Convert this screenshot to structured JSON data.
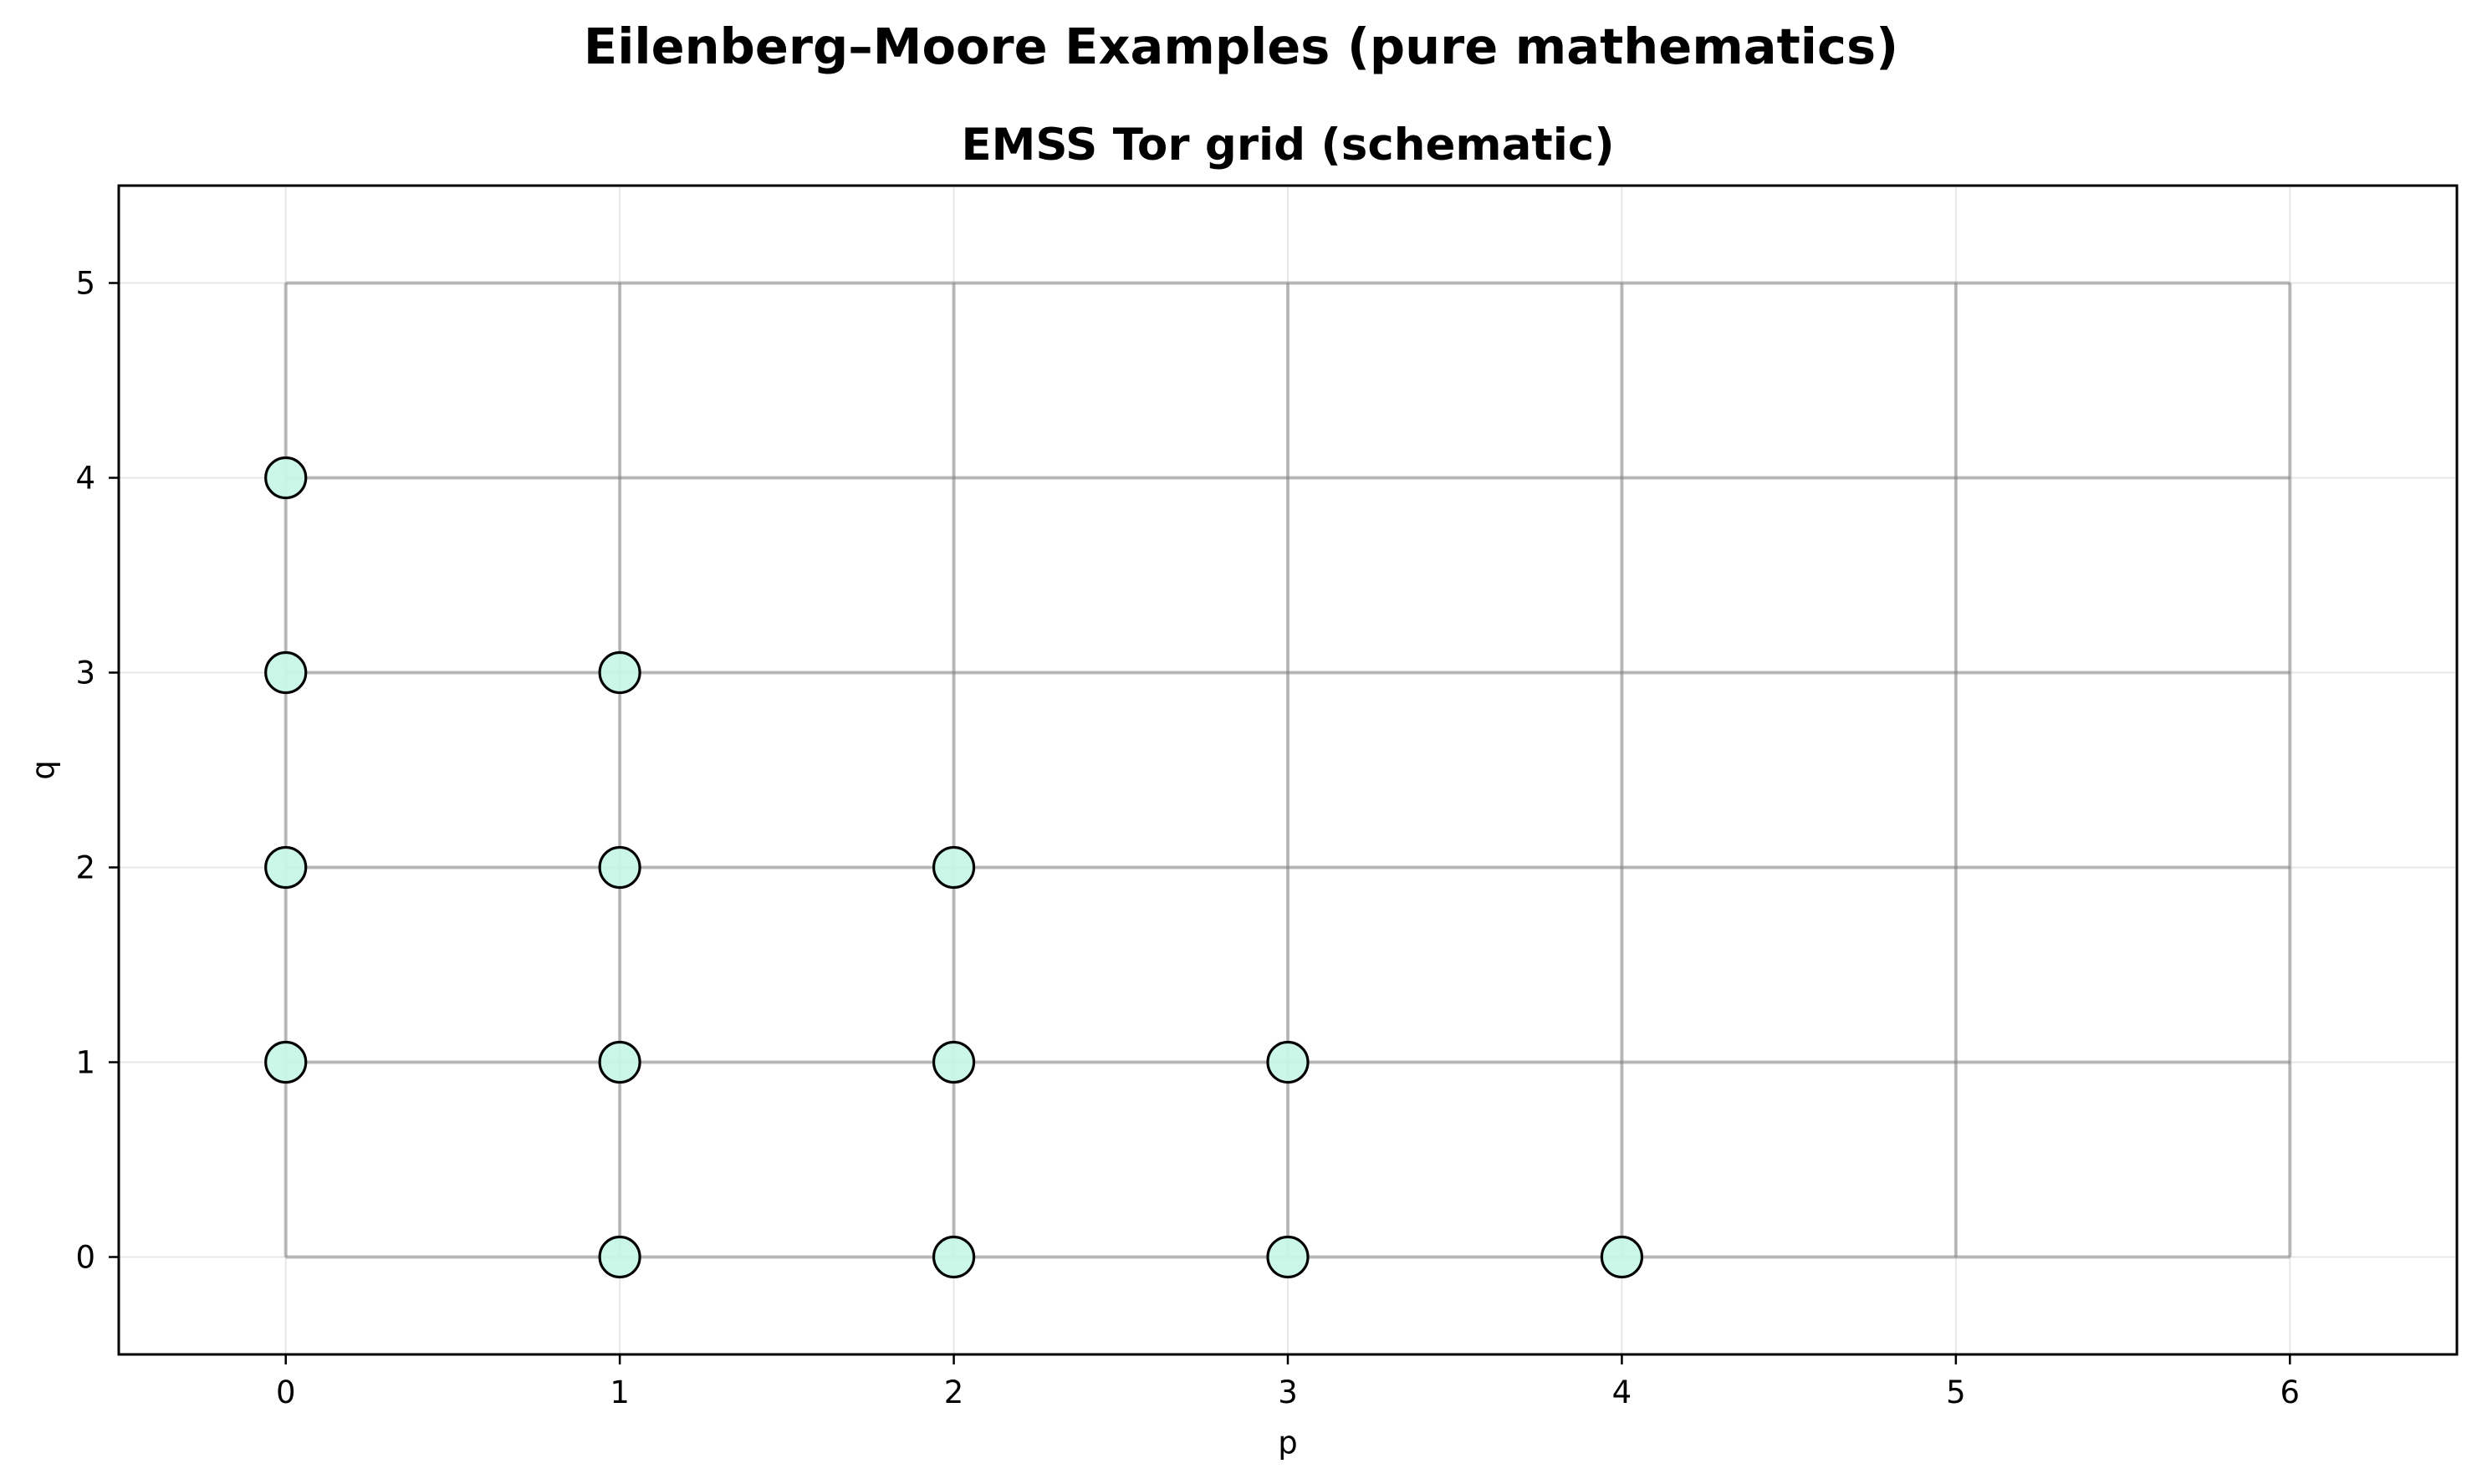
{
  "figure": {
    "suptitle": "Eilenberg–Moore Examples (pure mathematics)"
  },
  "chart_data": {
    "type": "scatter",
    "title": "EMSS Tor grid (schematic)",
    "xlabel": "p",
    "ylabel": "q",
    "xlim": [
      -0.5,
      6.5
    ],
    "ylim": [
      -0.5,
      5.5
    ],
    "xticks": [
      0,
      1,
      2,
      3,
      4,
      5,
      6
    ],
    "yticks": [
      0,
      1,
      2,
      3,
      4,
      5
    ],
    "grid": true,
    "schematic_grid": {
      "p": [
        0,
        1,
        2,
        3,
        4,
        5,
        6
      ],
      "q": [
        0,
        1,
        2,
        3,
        4,
        5
      ],
      "color": "#7f7f7f"
    },
    "series": [
      {
        "points": [
          [
            0,
            1
          ],
          [
            0,
            2
          ],
          [
            0,
            3
          ],
          [
            0,
            4
          ],
          [
            1,
            0
          ],
          [
            1,
            1
          ],
          [
            1,
            2
          ],
          [
            1,
            3
          ],
          [
            2,
            0
          ],
          [
            2,
            1
          ],
          [
            2,
            2
          ],
          [
            3,
            0
          ],
          [
            3,
            1
          ],
          [
            4,
            0
          ]
        ],
        "face_color": "#c8f7e8",
        "edge_color": "#000000"
      }
    ]
  }
}
